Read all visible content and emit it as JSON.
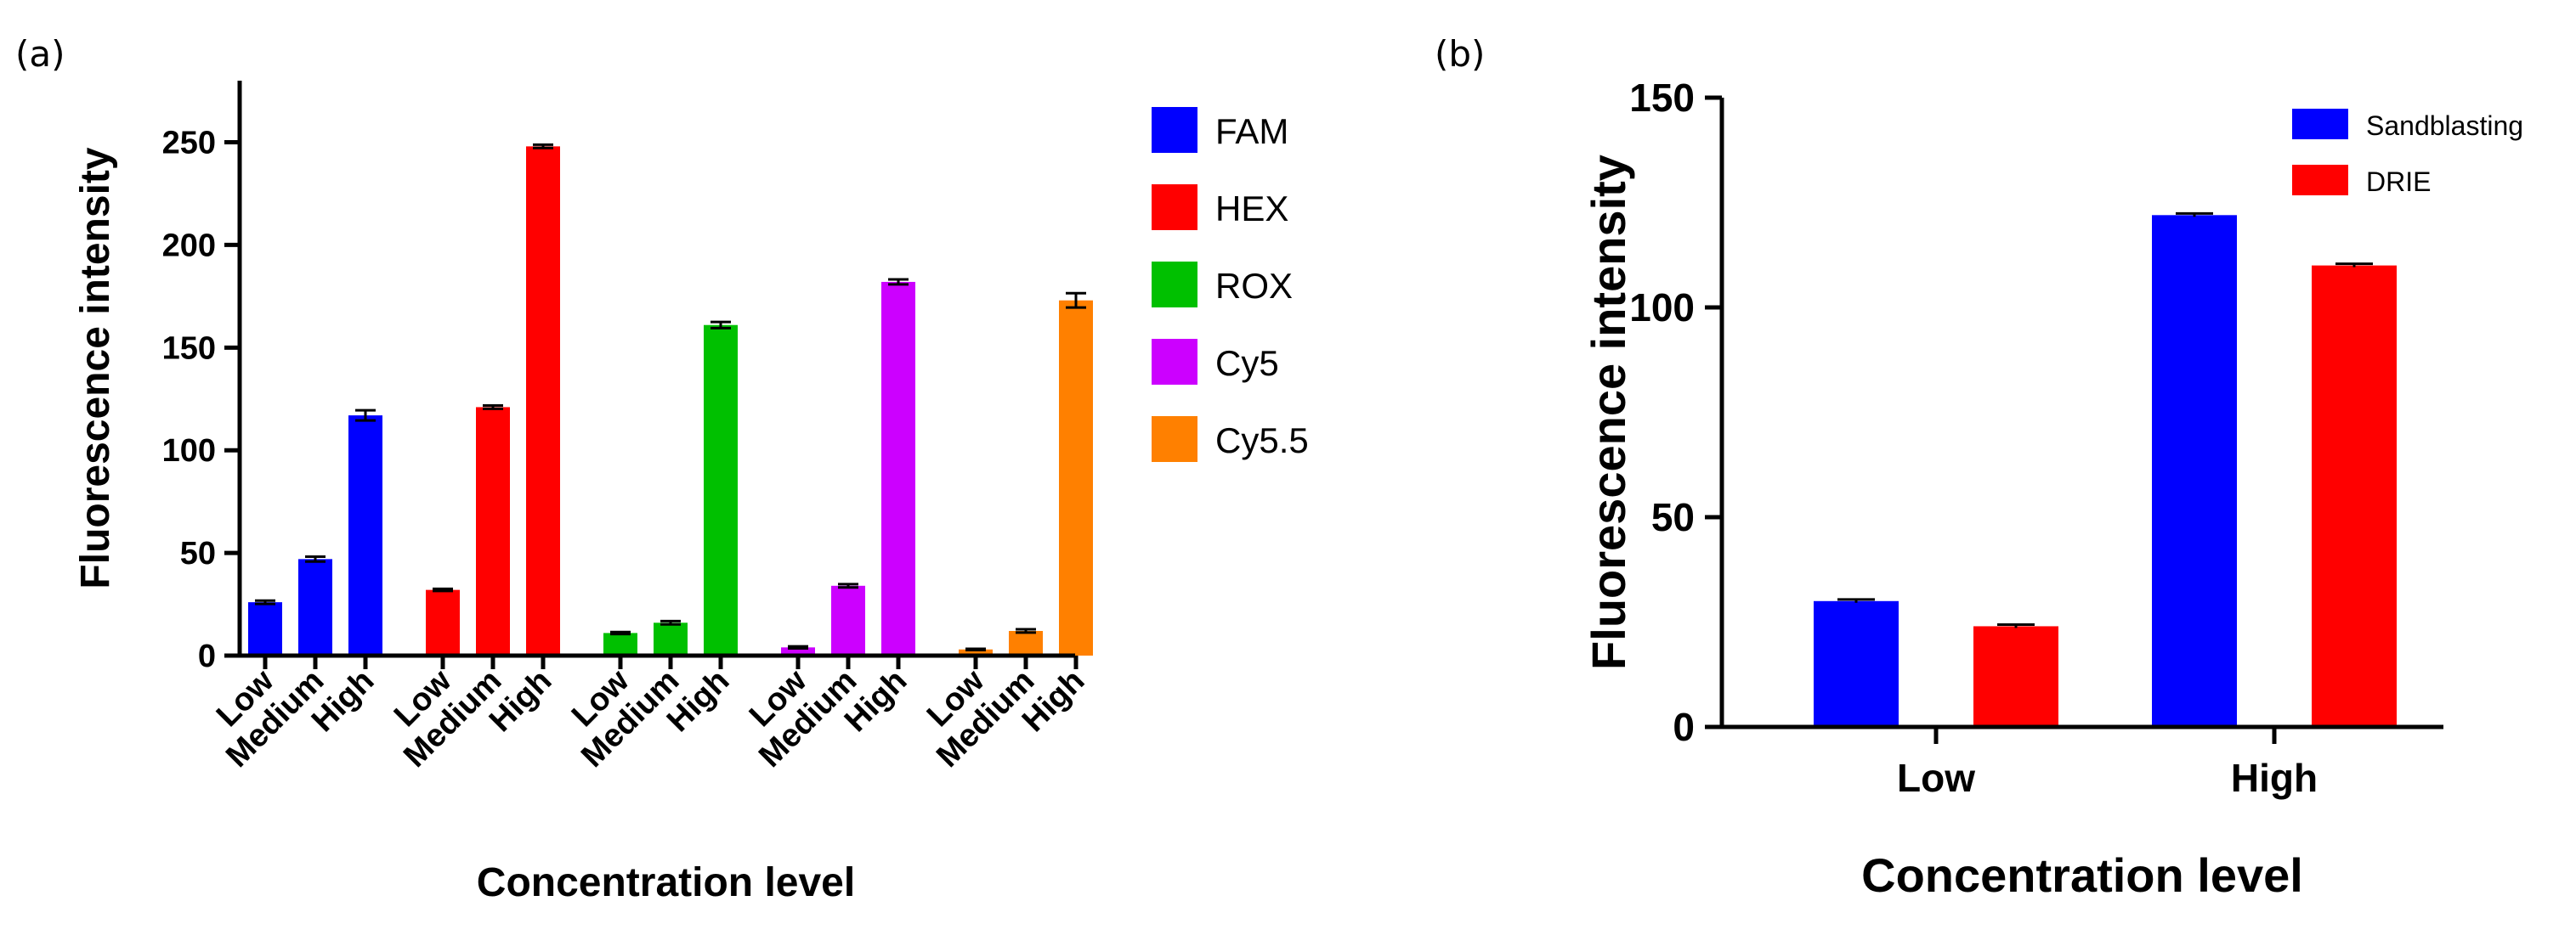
{
  "figure": {
    "panel_a_label": "(a)",
    "panel_b_label": "(b)"
  },
  "chart_data": [
    {
      "type": "bar",
      "panel": "(a)",
      "xlabel": "Concentration level",
      "ylabel": "Fluorescence intensity",
      "ylim": [
        0,
        280
      ],
      "yticks": [
        0,
        50,
        100,
        150,
        200,
        250
      ],
      "groups": [
        {
          "name": "FAM",
          "color": "#0000ff",
          "categories": [
            "Low",
            "Medium",
            "High"
          ],
          "values": [
            26,
            47,
            117
          ],
          "errors": [
            0.8,
            1.2,
            2.5
          ]
        },
        {
          "name": "HEX",
          "color": "#ff0000",
          "categories": [
            "Low",
            "Medium",
            "High"
          ],
          "values": [
            32,
            121,
            248
          ],
          "errors": [
            0.5,
            0.8,
            0.8
          ]
        },
        {
          "name": "ROX",
          "color": "#00c000",
          "categories": [
            "Low",
            "Medium",
            "High"
          ],
          "values": [
            11,
            16,
            161
          ],
          "errors": [
            0.5,
            0.8,
            1.5
          ]
        },
        {
          "name": "Cy5",
          "color": "#cc00ff",
          "categories": [
            "Low",
            "Medium",
            "High"
          ],
          "values": [
            4,
            34,
            182
          ],
          "errors": [
            0.5,
            0.8,
            1.2
          ]
        },
        {
          "name": "Cy5.5",
          "color": "#ff8000",
          "categories": [
            "Low",
            "Medium",
            "High"
          ],
          "values": [
            3,
            12,
            173
          ],
          "errors": [
            0.3,
            0.8,
            3.5
          ]
        }
      ],
      "legend": [
        "FAM",
        "HEX",
        "ROX",
        "Cy5",
        "Cy5.5"
      ],
      "legend_position": "right"
    },
    {
      "type": "bar",
      "panel": "(b)",
      "xlabel": "Concentration level",
      "ylabel": "Fluorescence intensity",
      "ylim": [
        0,
        150
      ],
      "yticks": [
        0,
        50,
        100,
        150
      ],
      "categories": [
        "Low",
        "High"
      ],
      "series": [
        {
          "name": "Sandblasting",
          "color": "#0000ff",
          "values": [
            30,
            122
          ],
          "errors": [
            0.4,
            0.4
          ]
        },
        {
          "name": "DRIE",
          "color": "#ff0000",
          "values": [
            24,
            110
          ],
          "errors": [
            0.4,
            0.4
          ]
        }
      ],
      "legend_position": "top-right"
    }
  ]
}
